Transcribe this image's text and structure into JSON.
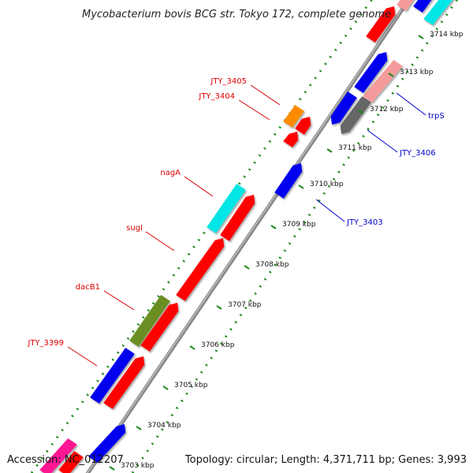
{
  "title": "Mycobacterium bovis BCG str. Tokyo 172, complete genome",
  "accession": "Accession: NC_012207",
  "topology": "Topology: circular; Length: 4,371,711 bp; Genes: 3,993",
  "colors": {
    "backbone": "#8a8a8a",
    "dots": "#1e8c1e",
    "red": "#ff0000",
    "blue": "#0000ee",
    "cyan": "#00e5e5",
    "olive": "#6b8e23",
    "orange": "#ff8c00",
    "pink": "#f59a9a",
    "grey": "#666666",
    "magenta": "#ff1493",
    "label_red": "#dd0000",
    "label_blue": "#0000cc"
  },
  "ticks": [
    {
      "label": "3703 kbp"
    },
    {
      "label": "3704 kbp"
    },
    {
      "label": "3705 kbp"
    },
    {
      "label": "3706 kbp"
    },
    {
      "label": "3707 kbp"
    },
    {
      "label": "3708 kbp"
    },
    {
      "label": "3709 kbp"
    },
    {
      "label": "3710 kbp"
    },
    {
      "label": "3711 kbp"
    },
    {
      "label": "3712 kbp"
    },
    {
      "label": "3713 kbp"
    },
    {
      "label": "3714 kbp"
    }
  ],
  "gene_labels": [
    {
      "text": "JTY_3405",
      "color": "red"
    },
    {
      "text": "JTY_3404",
      "color": "red"
    },
    {
      "text": "nagA",
      "color": "red"
    },
    {
      "text": "sugI",
      "color": "red"
    },
    {
      "text": "dacB1",
      "color": "red"
    },
    {
      "text": "JTY_3399",
      "color": "red"
    },
    {
      "text": "trpS",
      "color": "blue"
    },
    {
      "text": "JTY_3406",
      "color": "blue"
    },
    {
      "text": "JTY_3403",
      "color": "blue"
    }
  ]
}
